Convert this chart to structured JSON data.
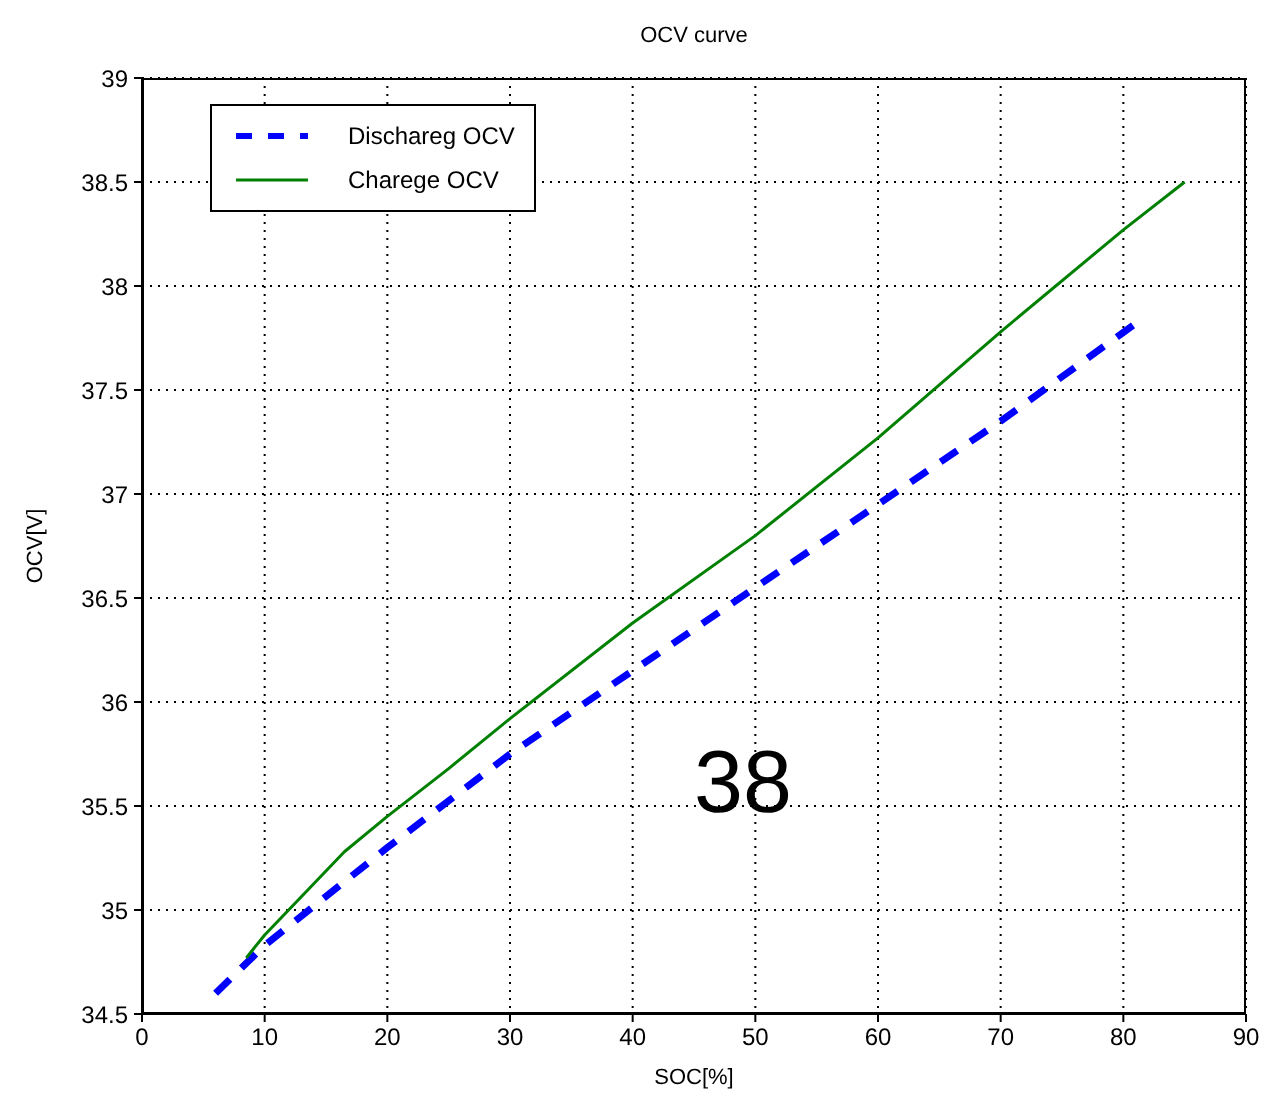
{
  "chart_data": {
    "type": "line",
    "title": "OCV curve",
    "xlabel": "SOC[%]",
    "ylabel": "OCV[V]",
    "xlim": [
      0,
      90
    ],
    "xticks": [
      0,
      10,
      20,
      30,
      40,
      50,
      60,
      70,
      80,
      90
    ],
    "ylim": [
      34.5,
      39
    ],
    "yticks": [
      34.5,
      35,
      35.5,
      36,
      36.5,
      37,
      37.5,
      38,
      38.5,
      39
    ],
    "grid": true,
    "legend": "top left",
    "marker": "none",
    "annotations": [
      "38"
    ],
    "series": [
      {
        "name": "Dischareg OCV",
        "color": "#0000ff",
        "line_style": "dashed",
        "x": [
          6,
          10,
          20,
          30,
          40,
          50,
          60,
          70,
          81
        ],
        "values": [
          34.6,
          34.83,
          35.3,
          35.75,
          36.15,
          36.55,
          36.95,
          37.35,
          37.82
        ]
      },
      {
        "name": "Charege OCV",
        "color": "#008000",
        "line_style": "solid",
        "x": [
          8.5,
          10,
          16.5,
          20,
          25,
          30,
          40,
          50,
          60,
          70,
          80,
          85
        ],
        "values": [
          34.77,
          34.88,
          35.28,
          35.45,
          35.68,
          35.92,
          36.38,
          36.8,
          37.27,
          37.78,
          38.27,
          38.5
        ]
      }
    ]
  }
}
